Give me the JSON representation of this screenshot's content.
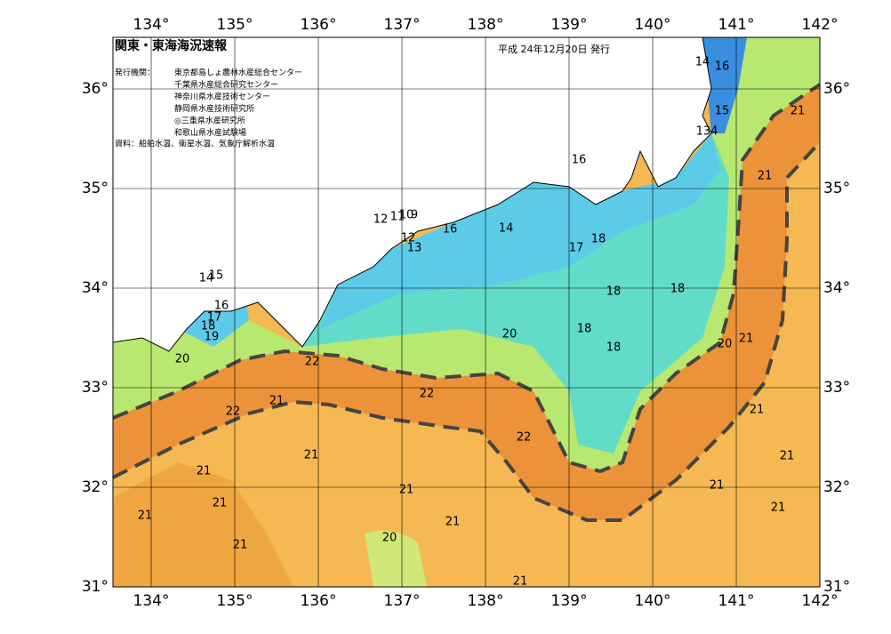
{
  "header": {
    "title": "関東・東海海況速報",
    "date": "平成 24年12月20日 発行",
    "issuer_heading": "発行機関：",
    "issuers": [
      "東京都島しょ農林水産総合センター",
      "千葉県水産総合研究センター",
      "神奈川県水産技術センター",
      "静岡県水産技術研究所",
      "◎三重県水産研究所",
      "和歌山県水産試験場"
    ],
    "source": "資料：船舶水温、衛星水温、気象庁解析水温"
  },
  "lon_ticks": [
    {
      "value": 134,
      "label": "134°"
    },
    {
      "value": 135,
      "label": "135°"
    },
    {
      "value": 136,
      "label": "136°"
    },
    {
      "value": 137,
      "label": "137°"
    },
    {
      "value": 138,
      "label": "138°"
    },
    {
      "value": 139,
      "label": "139°"
    },
    {
      "value": 140,
      "label": "140°"
    },
    {
      "value": 141,
      "label": "141°"
    },
    {
      "value": 142,
      "label": "142°"
    }
  ],
  "lat_ticks": [
    {
      "value": 36,
      "label": "36°"
    },
    {
      "value": 35,
      "label": "35°"
    },
    {
      "value": 34,
      "label": "34°"
    },
    {
      "value": 33,
      "label": "33°"
    },
    {
      "value": 32,
      "label": "32°"
    },
    {
      "value": 31,
      "label": "31°"
    }
  ],
  "contour_labels": [
    14,
    16,
    15,
    134,
    21,
    21,
    16,
    14,
    16,
    12,
    11,
    10,
    9,
    12,
    13,
    17,
    18,
    18,
    18,
    18,
    18,
    20,
    20,
    21,
    14,
    15,
    16,
    17,
    18,
    19,
    20,
    22,
    22,
    21,
    22,
    22,
    21,
    21,
    21,
    21,
    21,
    21,
    21,
    21,
    21,
    21,
    20,
    21,
    21
  ]
}
